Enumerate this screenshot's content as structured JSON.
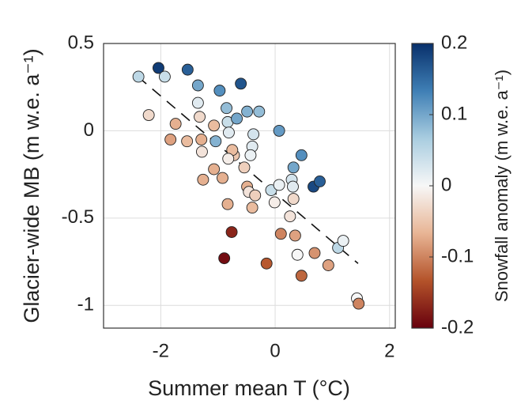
{
  "chart_data": {
    "type": "scatter",
    "x_label": "Summer mean T (°C)",
    "y_label": "Glacier-wide MB (m w.e. a⁻¹)",
    "colorbar_label": "Snowfall anomaly (m w.e. a⁻¹)",
    "xlim": [
      -3,
      2.1
    ],
    "xticks": [
      -2,
      0,
      2
    ],
    "ylim": [
      -1.13,
      0.5
    ],
    "yticks": [
      0.5,
      0,
      -0.5,
      -1
    ],
    "clim": [
      -0.2,
      0.2
    ],
    "cticks": [
      0.2,
      0.1,
      0,
      -0.1,
      -0.2
    ],
    "colormap": [
      "#67000d",
      "#b4532a",
      "#e8b595",
      "#f7f7f7",
      "#a9cde0",
      "#3f7fb5",
      "#08306b"
    ],
    "grid": true,
    "trend_line": {
      "x": [
        -2.4,
        1.45
      ],
      "y": [
        0.31,
        -0.76
      ],
      "color": "#111111"
    },
    "x": [
      -2.39,
      -2.04,
      -1.93,
      -1.53,
      -0.6,
      -0.97,
      -1.35,
      -1.35,
      -2.21,
      -1.74,
      -1.83,
      -1.54,
      -1.32,
      -1.29,
      -1.28,
      -1.07,
      -1.04,
      -0.85,
      -0.83,
      -0.81,
      -0.67,
      -0.49,
      -0.28,
      0.07,
      -0.38,
      -0.4,
      -0.43,
      -0.72,
      -0.75,
      -0.82,
      -1.07,
      -0.92,
      -1.26,
      -0.54,
      -0.49,
      -0.46,
      -0.4,
      -0.35,
      -0.07,
      -0.01,
      0.07,
      -0.83,
      -0.76,
      -0.89,
      -0.15,
      0.1,
      0.26,
      0.29,
      0.31,
      0.32,
      0.32,
      0.35,
      0.39,
      0.46,
      0.46,
      0.67,
      0.78,
      0.69,
      0.93,
      1.1,
      1.19,
      1.43,
      1.46
    ],
    "y": [
      0.31,
      0.36,
      0.31,
      0.35,
      0.27,
      0.23,
      0.26,
      0.16,
      0.09,
      0.04,
      -0.05,
      -0.06,
      0.08,
      -0.05,
      -0.12,
      0.03,
      -0.06,
      0.13,
      0.05,
      -0.01,
      0.07,
      0.11,
      0.11,
      0.0,
      -0.02,
      -0.09,
      -0.14,
      -0.14,
      -0.11,
      -0.16,
      -0.22,
      -0.27,
      -0.28,
      -0.21,
      -0.32,
      -0.35,
      -0.44,
      -0.37,
      -0.34,
      -0.41,
      -0.31,
      -0.42,
      -0.58,
      -0.73,
      -0.76,
      -0.59,
      -0.49,
      -0.28,
      -0.32,
      -0.21,
      -0.39,
      -0.6,
      -0.71,
      -0.14,
      -0.83,
      -0.32,
      -0.29,
      -0.7,
      -0.77,
      -0.67,
      -0.63,
      -0.96,
      -0.99
    ],
    "c": [
      0.05,
      0.19,
      0.04,
      0.16,
      0.17,
      0.12,
      0.1,
      0.02,
      -0.03,
      -0.07,
      -0.08,
      -0.06,
      -0.03,
      -0.07,
      -0.02,
      -0.06,
      0.09,
      0.08,
      0.04,
      0.02,
      0.1,
      0.09,
      0.08,
      0.11,
      0.03,
      0.02,
      0.01,
      -0.05,
      -0.06,
      -0.01,
      -0.07,
      -0.07,
      -0.07,
      -0.04,
      -0.07,
      -0.02,
      -0.06,
      -0.04,
      0.04,
      -0.01,
      0.01,
      -0.07,
      -0.17,
      -0.19,
      -0.13,
      -0.1,
      -0.02,
      0.03,
      0.02,
      0.1,
      -0.03,
      -0.08,
      0.0,
      0.12,
      -0.12,
      0.18,
      0.16,
      -0.09,
      -0.08,
      0.05,
      0.01,
      0.0,
      -0.1
    ]
  }
}
